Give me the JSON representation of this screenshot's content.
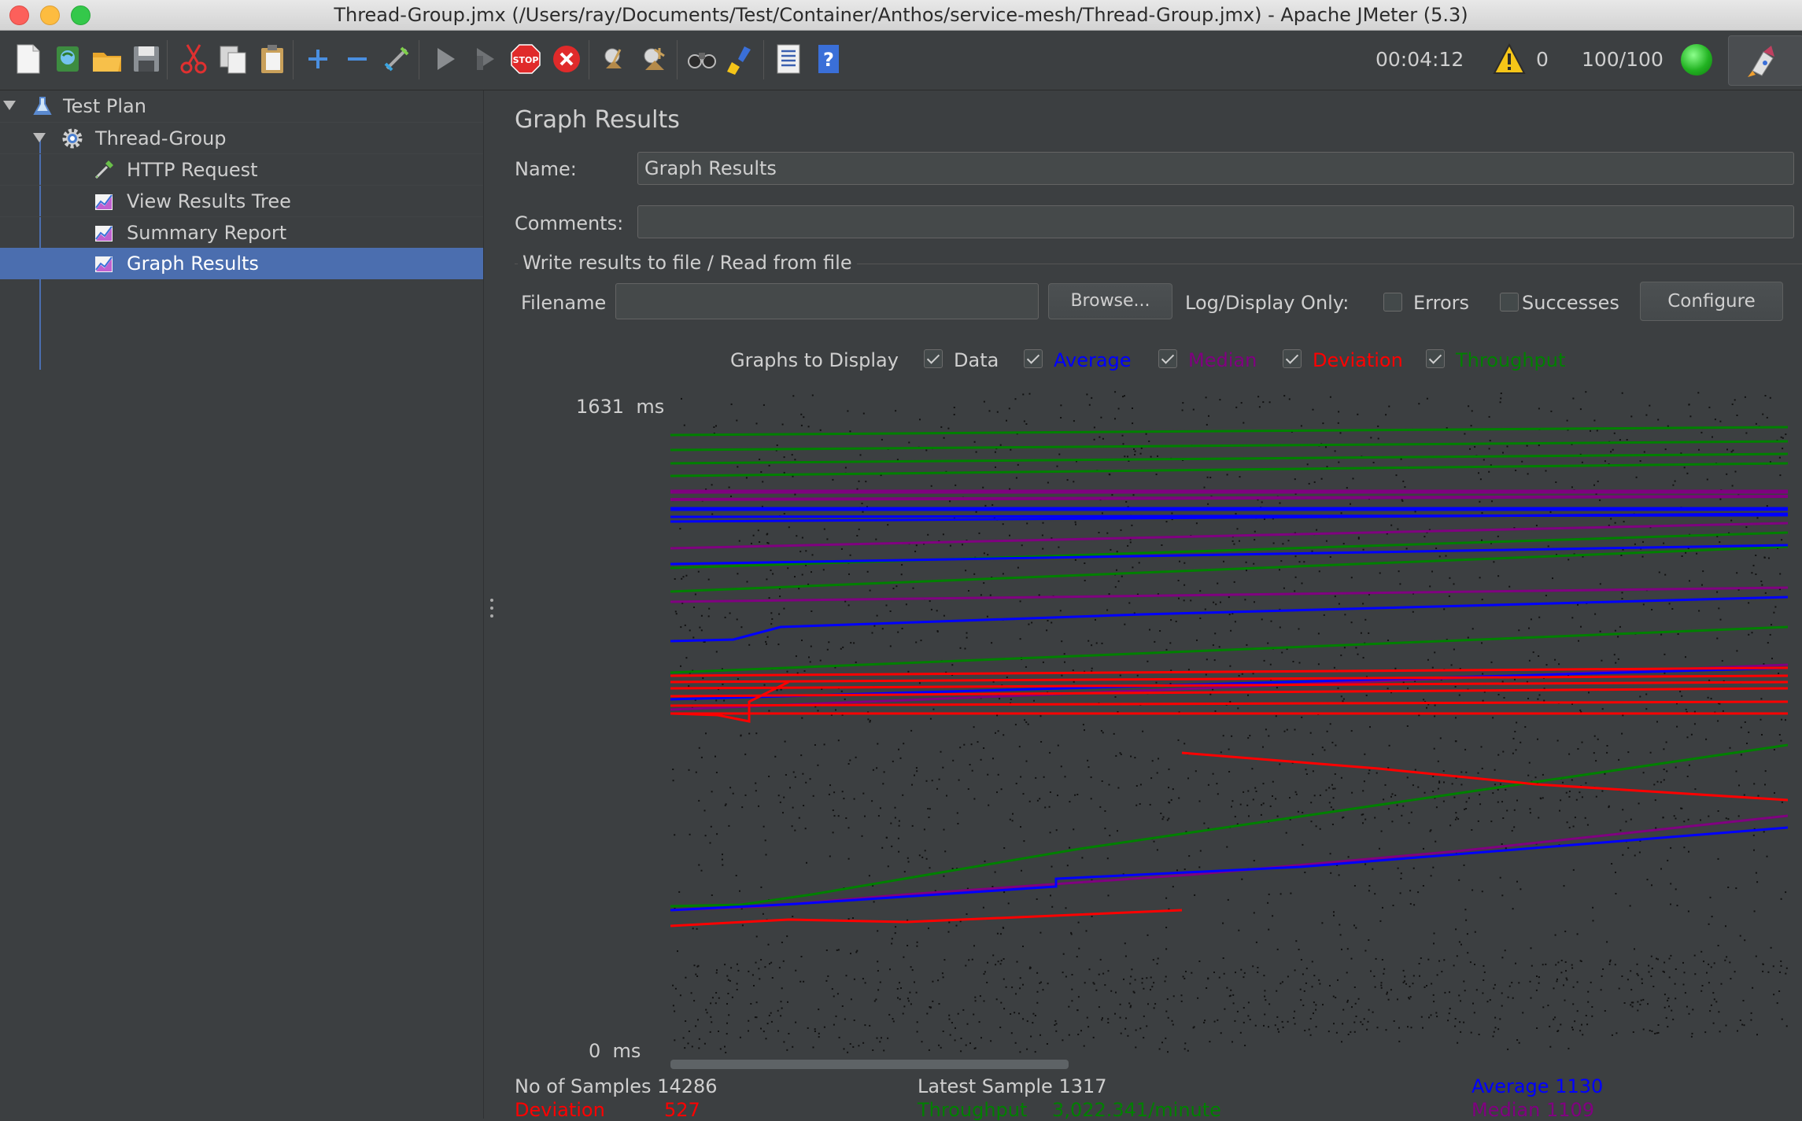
{
  "window": {
    "title": "Thread-Group.jmx (/Users/ray/Documents/Test/Container/Anthos/service-mesh/Thread-Group.jmx) - Apache JMeter (5.3)"
  },
  "toolbar": {
    "icons": [
      "new-icon",
      "templates-icon",
      "open-icon",
      "save-icon",
      "cut-icon",
      "copy-icon",
      "paste-icon",
      "expand-icon",
      "collapse-icon",
      "toggle-icon",
      "start-icon",
      "start-no-pauses-icon",
      "stop-icon",
      "shutdown-icon",
      "clear-icon",
      "clear-all-icon",
      "search-icon",
      "reset-search-icon",
      "function-helper-icon",
      "help-icon"
    ],
    "timer": "00:04:12",
    "warning_count": "0",
    "threads": "100/100"
  },
  "tree": {
    "items": [
      {
        "label": "Test Plan",
        "icon": "flask-icon"
      },
      {
        "label": "Thread-Group",
        "icon": "gear-icon"
      },
      {
        "label": "HTTP Request",
        "icon": "pipette-icon"
      },
      {
        "label": "View Results Tree",
        "icon": "graph-icon"
      },
      {
        "label": "Summary Report",
        "icon": "graph-icon"
      },
      {
        "label": "Graph Results",
        "icon": "graph-icon"
      }
    ]
  },
  "panel": {
    "title": "Graph Results",
    "name_label": "Name:",
    "name_value": "Graph Results",
    "comments_label": "Comments:",
    "comments_value": "",
    "file_group_title": "Write results to file / Read from file",
    "filename_label": "Filename",
    "filename_value": "",
    "browse_label": "Browse...",
    "log_display_label": "Log/Display Only:",
    "errors_label": "Errors",
    "successes_label": "Successes",
    "configure_label": "Configure",
    "graphs_to_display_label": "Graphs to Display",
    "graph_toggles": [
      {
        "label": "Data",
        "checked": true,
        "color": "#1a1a1a"
      },
      {
        "label": "Average",
        "checked": true,
        "color": "#0000ff"
      },
      {
        "label": "Median",
        "checked": true,
        "color": "#800080"
      },
      {
        "label": "Deviation",
        "checked": true,
        "color": "#ff0000"
      },
      {
        "label": "Throughput",
        "checked": true,
        "color": "#008000"
      }
    ]
  },
  "graph": {
    "ymax_label": "1631",
    "ymin_label": "0",
    "unit": "ms"
  },
  "stats": {
    "samples_label": "No of Samples",
    "samples_value": "14286",
    "latest_label": "Latest Sample",
    "latest_value": "1317",
    "average_label": "Average",
    "average_value": "1130",
    "deviation_label": "Deviation",
    "deviation_value": "527",
    "throughput_label": "Throughput",
    "throughput_value": "3,022.341/minute",
    "median_label": "Median",
    "median_value": "1109"
  },
  "colors": {
    "average": "#0000ff",
    "median": "#800080",
    "deviation": "#ff0000",
    "throughput": "#008000",
    "selection": "#4b6eaf"
  }
}
